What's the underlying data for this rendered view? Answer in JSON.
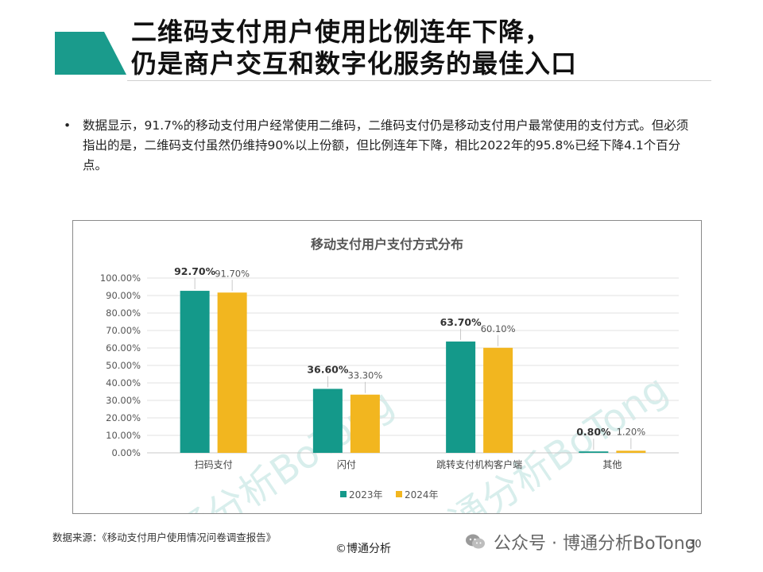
{
  "slide": {
    "title_line1": "二维码支付用户使用比例连年下降，",
    "title_line2": "仍是商户交互和数字化服务的最佳入口",
    "bullet_text": "数据显示，91.7%的移动支付用户经常使用二维码，二维码支付仍是移动支付用户最常使用的支付方式。但必须指出的是，二维码支付虽然仍维持90%以上份额，但比例连年下降，相比2022年的95.8%已经下降4.1个百分点。",
    "source": "数据来源：《移动支付用户使用情况问卷调查报告》",
    "copyright": "©博通分析",
    "wechat": "公众号 · 博通分析BoTong",
    "page_number": "30",
    "watermark": "博通分析BoTong",
    "accent_color": "#1a9b8c"
  },
  "chart_data": {
    "type": "bar",
    "title": "移动支付用户支付方式分布",
    "categories": [
      "扫码支付",
      "闪付",
      "跳转支付机构客户端",
      "其他"
    ],
    "series": [
      {
        "name": "2023年",
        "color": "#14998a",
        "values": [
          92.7,
          36.6,
          63.7,
          0.8
        ],
        "labels": [
          "92.70%",
          "36.60%",
          "63.70%",
          "0.80%"
        ]
      },
      {
        "name": "2024年",
        "color": "#f2b61f",
        "values": [
          91.7,
          33.3,
          60.1,
          1.2
        ],
        "labels": [
          "91.70%",
          "33.30%",
          "60.10%",
          "1.20%"
        ]
      }
    ],
    "ylim": [
      0,
      100
    ],
    "yticks": [
      "0.00%",
      "10.00%",
      "20.00%",
      "30.00%",
      "40.00%",
      "50.00%",
      "60.00%",
      "70.00%",
      "80.00%",
      "90.00%",
      "100.00%"
    ],
    "grid": true,
    "legend": "bottom"
  }
}
